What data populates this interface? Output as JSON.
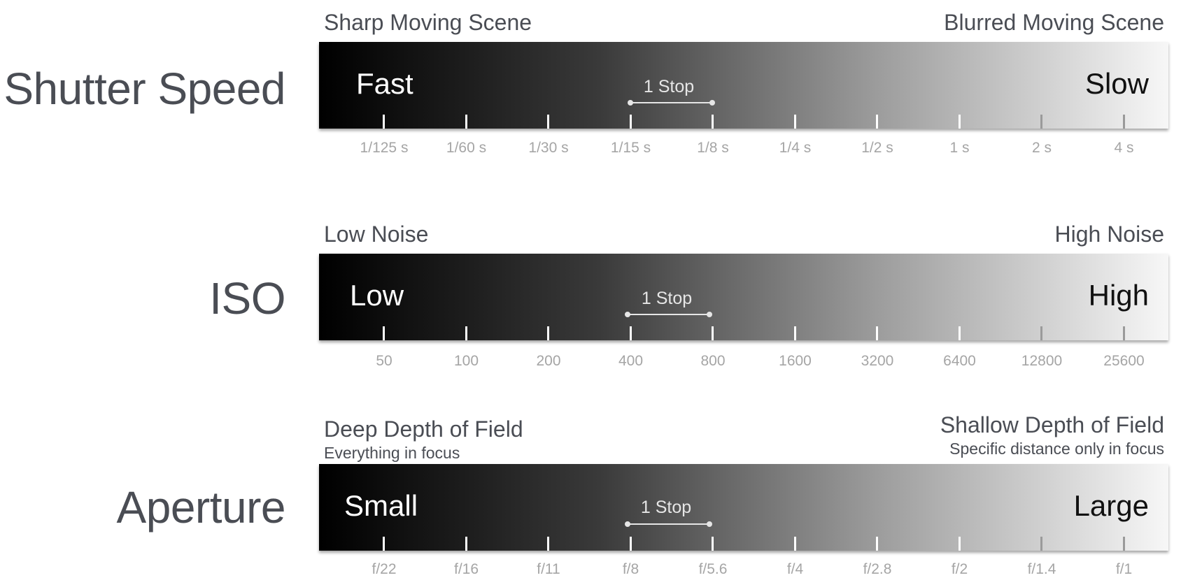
{
  "rows": [
    {
      "title": "Shutter Speed",
      "left_caption": "Sharp Moving Scene",
      "right_caption": "Blurred Moving Scene",
      "left_subcaption": "",
      "right_subcaption": "",
      "left_end": "Fast",
      "right_end": "Slow",
      "stop_label": "1 Stop",
      "ticks": [
        "1/125 s",
        "1/60 s",
        "1/30 s",
        "1/15 s",
        "1/8 s",
        "1/4 s",
        "1/2 s",
        "1 s",
        "2 s",
        "4 s"
      ]
    },
    {
      "title": "ISO",
      "left_caption": "Low Noise",
      "right_caption": "High Noise",
      "left_subcaption": "",
      "right_subcaption": "",
      "left_end": "Low",
      "right_end": "High",
      "stop_label": "1 Stop",
      "ticks": [
        "50",
        "100",
        "200",
        "400",
        "800",
        "1600",
        "3200",
        "6400",
        "12800",
        "25600"
      ]
    },
    {
      "title": "Aperture",
      "left_caption": "Deep Depth of Field",
      "right_caption": "Shallow Depth of Field",
      "left_subcaption": "Everything in focus",
      "right_subcaption": "Specific distance only in focus",
      "left_end": "Small",
      "right_end": "Large",
      "stop_label": "1 Stop",
      "ticks": [
        "f/22",
        "f/16",
        "f/11",
        "f/8",
        "f/5.6",
        "f/4",
        "f/2.8",
        "f/2",
        "f/1.4",
        "f/1"
      ]
    }
  ],
  "colors": {
    "title_text": "#4a4d54",
    "tick_label": "#a5a5a5",
    "bar_dark": "#000000",
    "bar_light": "#f7f7f7"
  }
}
